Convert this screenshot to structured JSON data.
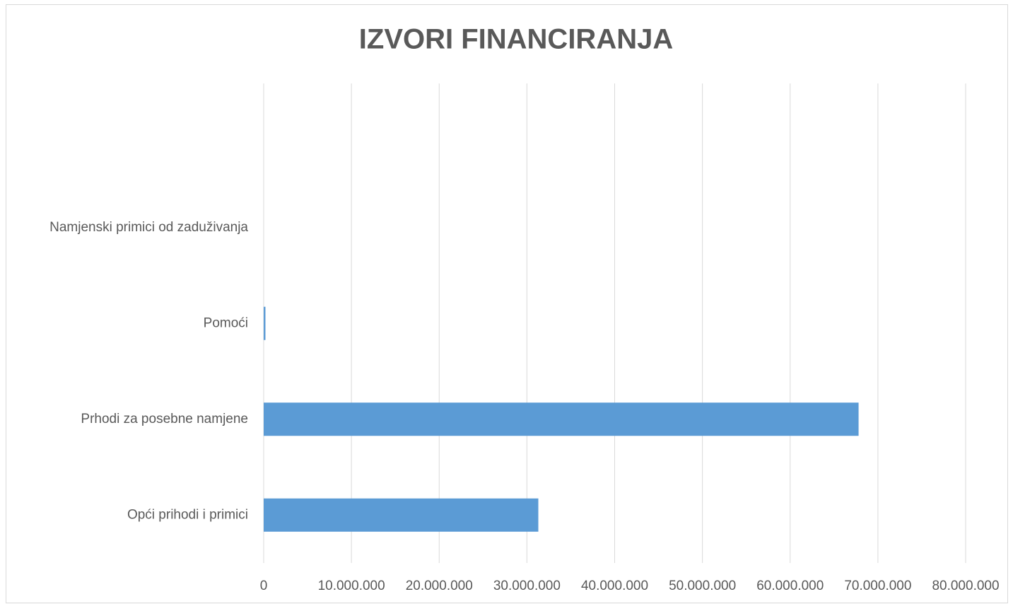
{
  "chart_data": {
    "type": "barh",
    "title": "IZVORI FINANCIRANJA",
    "categories": [
      "Opći prihodi i primici",
      "Prhodi za posebne namjene",
      "Pomoći",
      "Namjenski primici od zaduživanja"
    ],
    "values": [
      31300000,
      67800000,
      200000,
      0
    ],
    "color": "#5b9bd5",
    "xlim": [
      0,
      80000000
    ],
    "xticks": [
      0,
      {
        "value": 10000000,
        "label": "10.000.000"
      },
      {
        "value": 20000000,
        "label": "20.000.000"
      },
      {
        "value": 30000000,
        "label": "30.000.000"
      },
      {
        "value": 40000000,
        "label": "40.000.000"
      },
      {
        "value": 50000000,
        "label": "50.000.000"
      },
      {
        "value": 60000000,
        "label": "60.000.000"
      },
      {
        "value": 70000000,
        "label": "70.000.000"
      },
      {
        "value": 80000000,
        "label": "80.000.000"
      }
    ],
    "grid": true
  }
}
